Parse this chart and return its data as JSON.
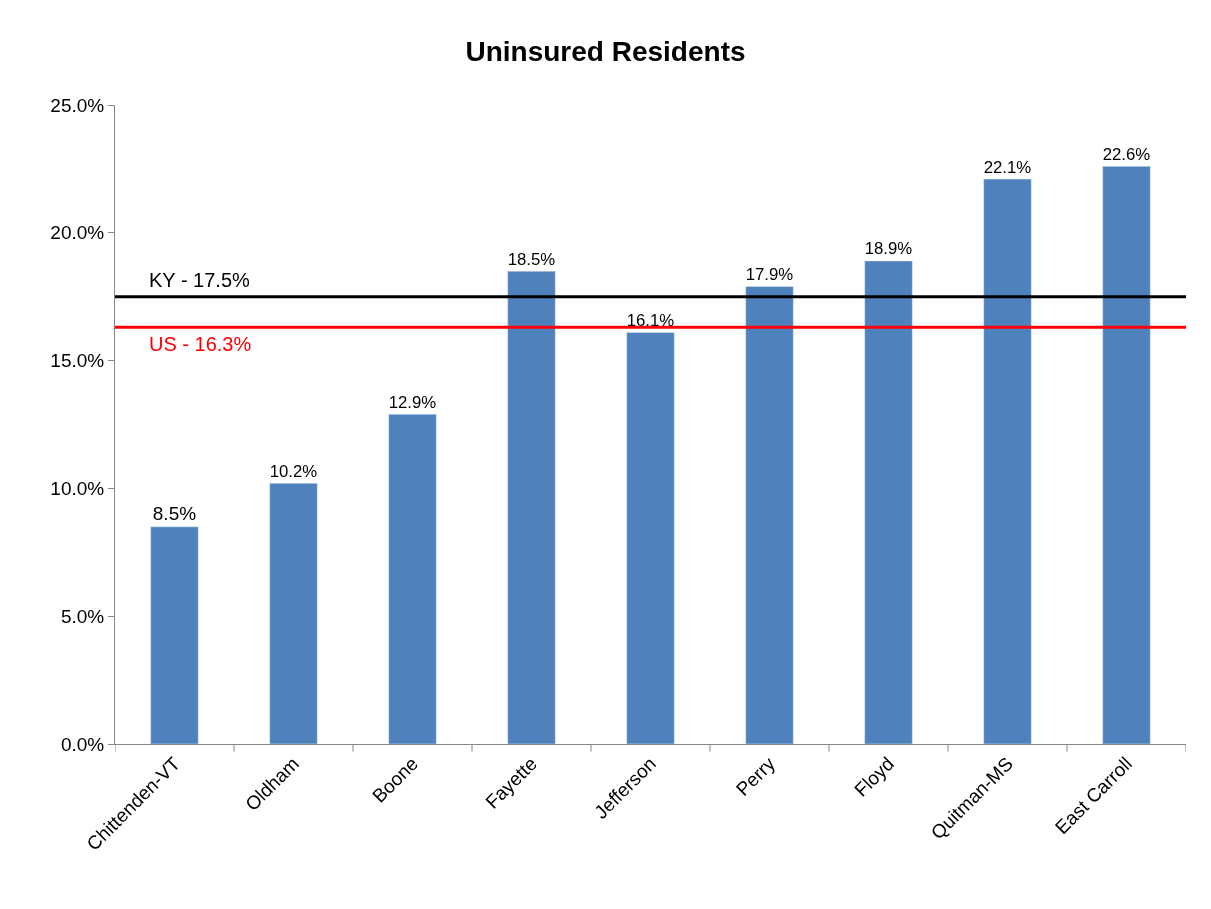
{
  "chart_data": {
    "type": "bar",
    "title": "Uninsured Residents",
    "categories": [
      "Chittenden-VT",
      "Oldham",
      "Boone",
      "Fayette",
      "Jefferson",
      "Perry",
      "Floyd",
      "Quitman-MS",
      "East Carroll"
    ],
    "values": [
      8.5,
      10.2,
      12.9,
      18.5,
      16.1,
      17.9,
      18.9,
      22.1,
      22.6
    ],
    "value_labels": [
      "8.5%",
      "10.2%",
      "12.9%",
      "18.5%",
      "16.1%",
      "17.9%",
      "18.9%",
      "22.1%",
      "22.6%"
    ],
    "color": "#4f81bd",
    "ylim": [
      0,
      25
    ],
    "yticks": [
      {
        "value": 0,
        "label": "0.0%"
      },
      {
        "value": 5,
        "label": "5.0%"
      },
      {
        "value": 10,
        "label": "10.0%"
      },
      {
        "value": 15,
        "label": "15.0%"
      },
      {
        "value": 20,
        "label": "20.0%"
      },
      {
        "value": 25,
        "label": "25.0%"
      }
    ],
    "ref_lines": [
      {
        "axis": "y",
        "value": 17.5,
        "label": "KY - 17.5%",
        "color": "#000000"
      },
      {
        "axis": "y",
        "value": 16.3,
        "label": "US - 16.3%",
        "color": "#ff0000"
      }
    ]
  }
}
